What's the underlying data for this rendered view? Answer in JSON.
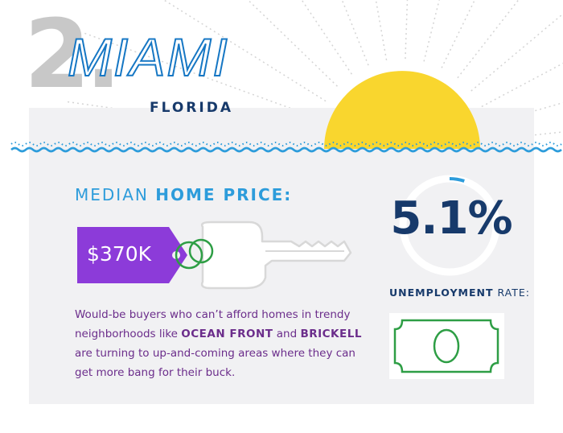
{
  "header": {
    "rank": "2.",
    "city": "MIAMI",
    "state": "FLORIDA"
  },
  "price": {
    "label_prefix": "MEDIAN ",
    "label_strong": "HOME PRICE:",
    "value": "$370K"
  },
  "description": {
    "part1": "Would-be buyers who can’t afford homes in trendy neighborhoods like ",
    "em1": "OCEAN FRONT",
    "part2": " and ",
    "em2": "BRICKELL",
    "part3": " are turning to up-and-coming areas where they can get more bang for their buck."
  },
  "unemployment": {
    "value": "5.1%",
    "fraction": 0.051,
    "label_strong": "UNEMPLOYMENT",
    "label_rest": " RATE:"
  },
  "colors": {
    "sun": "#f9d62e",
    "wave": "#2d9cdb",
    "navy": "#173a6b",
    "tag": "#8c3bd9",
    "text_purple": "#6b2d8b",
    "bill_green": "#2e9e45",
    "panel_bg": "#f1f1f3"
  },
  "icons": {
    "sun": "sun-icon",
    "tag": "price-tag-icon",
    "key": "key-icon",
    "bill": "dollar-bill-icon",
    "gauge": "gauge-ring-icon",
    "waves": "wave-divider-icon"
  }
}
